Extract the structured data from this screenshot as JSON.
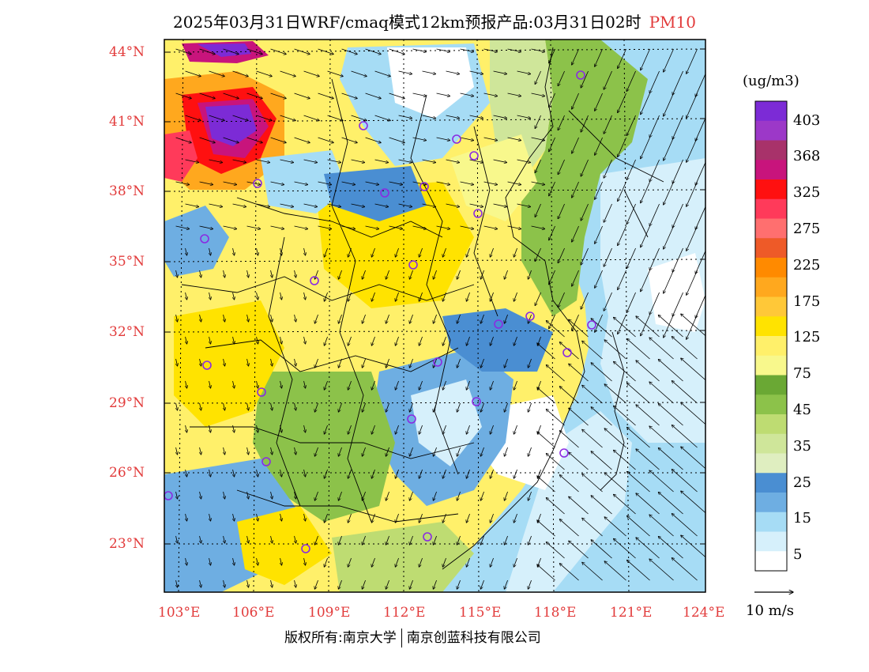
{
  "title": {
    "main": "2025年03月31日WRF/cmaq模式12km预报产品:03月31日02时",
    "variable": "PM10"
  },
  "axes": {
    "lat_labels": [
      "44°N",
      "41°N",
      "38°N",
      "35°N",
      "32°N",
      "29°N",
      "26°N",
      "23°N"
    ],
    "lon_labels": [
      "103°E",
      "106°E",
      "109°E",
      "112°E",
      "115°E",
      "118°E",
      "121°E",
      "124°E"
    ]
  },
  "colorbar": {
    "unit": "(ug/m3)",
    "labels": [
      "403",
      "368",
      "325",
      "275",
      "225",
      "175",
      "125",
      "75",
      "45",
      "35",
      "25",
      "15",
      "5"
    ],
    "colors": [
      "#7c2bd6",
      "#9c38c8",
      "#a8326a",
      "#c8147c",
      "#ff1010",
      "#ff3a5a",
      "#ff6f6f",
      "#ee5a28",
      "#ff8a00",
      "#ffa81e",
      "#ffc838",
      "#ffe300",
      "#fff06a",
      "#f8f88c",
      "#6aa834",
      "#8cc24a",
      "#bedc72",
      "#cfe69a",
      "#dfeec0",
      "#4a8ed2",
      "#6eaee2",
      "#a6dcf5",
      "#d6f0fb",
      "#ffffff"
    ]
  },
  "wind_reference": "10 m/s",
  "footer": {
    "left": "版权所有:南京大学",
    "right": "南京创蓝科技有限公司"
  },
  "map_palette": {
    "clean": "#ffffff",
    "very_low": "#d6f0fb",
    "low": "#a6dcf5",
    "low_mid": "#6eaee2",
    "mid_blue": "#4a8ed2",
    "light_green": "#cfe69a",
    "green": "#8cc24a",
    "dark_green": "#6aa834",
    "yellow_light": "#f8f88c",
    "yellow": "#ffe300",
    "orange": "#ff8a00",
    "red": "#ff1010",
    "magenta": "#c8147c",
    "purple": "#7c2bd6"
  }
}
